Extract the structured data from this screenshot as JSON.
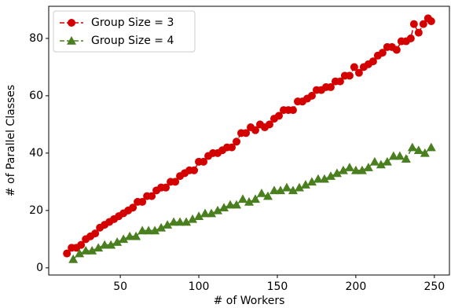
{
  "chart_data": {
    "type": "line",
    "x_label": "# of Workers",
    "y_label": "# of Parallel Classes",
    "xlim": [
      4.4,
      259.6
    ],
    "ylim": [
      -2.5,
      91.2
    ],
    "xticks": [
      50,
      100,
      150,
      200,
      250
    ],
    "yticks": [
      0,
      20,
      40,
      60,
      80
    ],
    "grid": false,
    "legend": "upper left",
    "line_style": "dashed",
    "series": [
      {
        "name": "Group Size = 3",
        "color": "#d40000",
        "marker": "circle",
        "x": [
          16,
          19,
          22,
          25,
          28,
          31,
          34,
          37,
          40,
          43,
          46,
          49,
          52,
          55,
          58,
          61,
          64,
          67,
          70,
          73,
          76,
          79,
          82,
          85,
          88,
          91,
          94,
          97,
          100,
          103,
          106,
          109,
          112,
          115,
          118,
          121,
          124,
          127,
          130,
          133,
          136,
          139,
          142,
          145,
          148,
          151,
          154,
          157,
          160,
          163,
          166,
          169,
          172,
          175,
          178,
          181,
          184,
          187,
          190,
          193,
          196,
          199,
          202,
          205,
          208,
          211,
          214,
          217,
          220,
          223,
          226,
          229,
          232,
          235,
          237,
          240,
          243,
          246,
          248
        ],
        "values": [
          5,
          7,
          7,
          8,
          10,
          11,
          12,
          14,
          15,
          16,
          17,
          18,
          19,
          20,
          21,
          23,
          23,
          25,
          25,
          27,
          28,
          28,
          30,
          30,
          32,
          33,
          34,
          34,
          37,
          37,
          39,
          40,
          40,
          41,
          42,
          42,
          44,
          47,
          47,
          49,
          48,
          50,
          49,
          50,
          52,
          53,
          55,
          55,
          55,
          58,
          58,
          59,
          60,
          62,
          62,
          63,
          63,
          65,
          65,
          67,
          67,
          70,
          68,
          70,
          71,
          72,
          74,
          75,
          77,
          77,
          76,
          79,
          79,
          80,
          85,
          82,
          85,
          87,
          86
        ]
      },
      {
        "name": "Group Size = 4",
        "color": "#4a7f1f",
        "marker": "triangle",
        "x": [
          20,
          24,
          28,
          32,
          36,
          40,
          44,
          48,
          52,
          56,
          60,
          64,
          68,
          72,
          76,
          80,
          84,
          88,
          92,
          96,
          100,
          104,
          108,
          112,
          116,
          120,
          124,
          128,
          132,
          136,
          140,
          144,
          148,
          152,
          156,
          160,
          164,
          168,
          172,
          176,
          180,
          184,
          188,
          192,
          196,
          200,
          204,
          208,
          212,
          216,
          220,
          224,
          228,
          232,
          236,
          240,
          244,
          248
        ],
        "values": [
          3,
          5,
          6,
          6,
          7,
          8,
          8,
          9,
          10,
          11,
          11,
          13,
          13,
          13,
          14,
          15,
          16,
          16,
          16,
          17,
          18,
          19,
          19,
          20,
          21,
          22,
          22,
          24,
          23,
          24,
          26,
          25,
          27,
          27,
          28,
          27,
          28,
          29,
          30,
          31,
          31,
          32,
          33,
          34,
          35,
          34,
          34,
          35,
          37,
          36,
          37,
          39,
          39,
          38,
          42,
          41,
          40,
          42
        ]
      }
    ]
  }
}
